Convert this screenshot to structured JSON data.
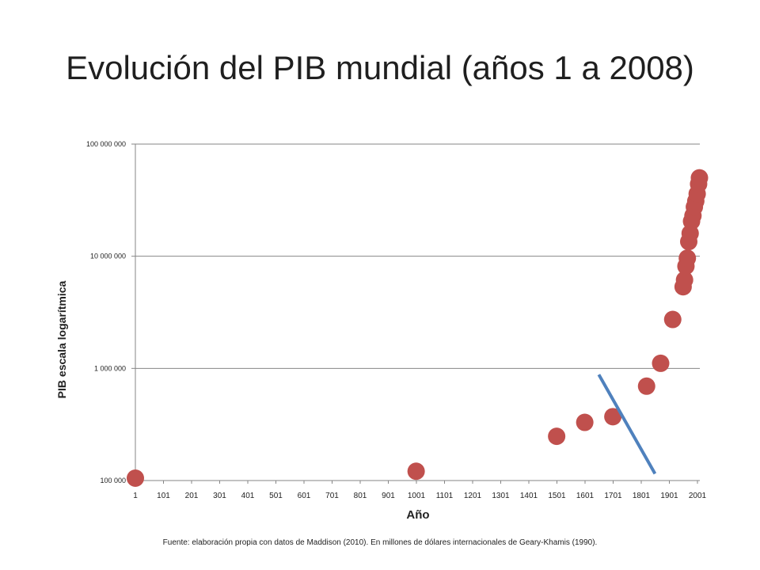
{
  "slide": {
    "title": "Evolución del PIB mundial (años 1 a 2008)",
    "source": "Fuente: elaboración propia con datos de Maddison (2010). En millones de dólares internacionales de Geary-Khamis (1990)."
  },
  "colors": {
    "points": "#c0504d",
    "trendline": "#4f81bd",
    "grid": "#868686",
    "axis_text": "#222222"
  },
  "chart_data": {
    "type": "scatter",
    "title": "",
    "xlabel": "Año",
    "ylabel": "PIB escala logarítmica",
    "y_scale": "log",
    "xlim": [
      1,
      2008
    ],
    "ylim": [
      100000,
      100000000
    ],
    "grid": true,
    "x_tick_values": [
      1,
      101,
      201,
      301,
      401,
      501,
      601,
      701,
      801,
      901,
      1001,
      1101,
      1201,
      1301,
      1401,
      1501,
      1601,
      1701,
      1801,
      1901,
      2001
    ],
    "x_tick_labels": [
      "1",
      "101",
      "201",
      "301",
      "401",
      "501",
      "601",
      "701",
      "801",
      "901",
      "1001",
      "1101",
      "1201",
      "1301",
      "1401",
      "1501",
      "1601",
      "1701",
      "1801",
      "1901",
      "2001"
    ],
    "y_tick_values": [
      100000,
      1000000,
      10000000,
      100000000
    ],
    "y_tick_labels": [
      "100 000",
      "1 000 000",
      "10 000 000",
      "100 000 000"
    ],
    "series": [
      {
        "points": [
          [
            1,
            105000
          ],
          [
            1000,
            121000
          ],
          [
            1500,
            248000
          ],
          [
            1600,
            330000
          ],
          [
            1700,
            371000
          ],
          [
            1820,
            694000
          ],
          [
            1870,
            1110000
          ],
          [
            1913,
            2730000
          ],
          [
            1950,
            5340000
          ],
          [
            1955,
            6150000
          ],
          [
            1960,
            8150000
          ],
          [
            1965,
            9600000
          ],
          [
            1970,
            13500000
          ],
          [
            1975,
            16000000
          ],
          [
            1980,
            20500000
          ],
          [
            1985,
            23000000
          ],
          [
            1990,
            27500000
          ],
          [
            1995,
            31000000
          ],
          [
            2000,
            36000000
          ],
          [
            2005,
            44000000
          ],
          [
            2008,
            50000000
          ]
        ]
      }
    ],
    "annotation_line": {
      "from": [
        1650,
        880000
      ],
      "to": [
        1850,
        115000
      ]
    }
  }
}
